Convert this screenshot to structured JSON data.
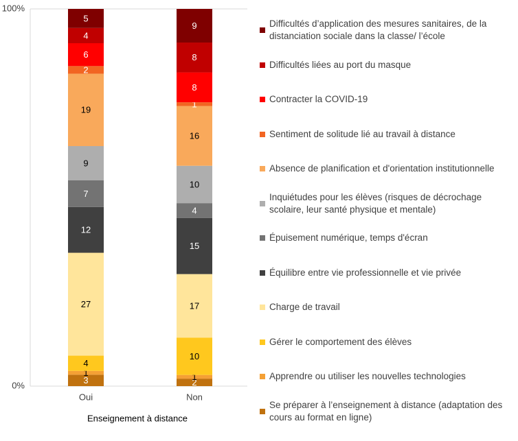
{
  "chart_data": {
    "type": "bar",
    "stacking": "percent",
    "x_label": "Enseignement à distance",
    "categories": [
      "Oui",
      "Non"
    ],
    "ylim": [
      0,
      100
    ],
    "yticks": [
      {
        "value": 0,
        "label": "0%"
      },
      {
        "value": 100,
        "label": "100%"
      }
    ],
    "series": [
      {
        "name": "Se préparer à l’enseignement à distance (adaptation des cours au format en ligne)",
        "color": "#c0720f",
        "values": [
          3,
          2
        ]
      },
      {
        "name": "Apprendre ou utiliser les nouvelles technologies",
        "color": "#f4a035",
        "values": [
          1,
          1
        ]
      },
      {
        "name": "Gérer le comportement des élèves",
        "color": "#ffc81e",
        "values": [
          4,
          10
        ]
      },
      {
        "name": "Charge de travail",
        "color": "#ffe59b",
        "values": [
          27,
          17
        ]
      },
      {
        "name": "Équilibre entre vie professionnelle et vie privée",
        "color": "#404040",
        "values": [
          12,
          15
        ]
      },
      {
        "name": "Épuisement numérique, temps d'écran",
        "color": "#737373",
        "values": [
          7,
          4
        ]
      },
      {
        "name": "Inquiétudes pour les élèves (risques de décrochage scolaire, leur santé physique et mentale)",
        "color": "#aeaeae",
        "values": [
          9,
          10
        ]
      },
      {
        "name": "Absence de planification et d'orientation institutionnelle",
        "color": "#f9a95b",
        "values": [
          19,
          16
        ]
      },
      {
        "name": "Sentiment de solitude lié au travail à distance",
        "color": "#f26522",
        "values": [
          2,
          1
        ]
      },
      {
        "name": "Contracter la COVID-19",
        "color": "#ff0000",
        "values": [
          6,
          8
        ]
      },
      {
        "name": "Difficultés liées au port du masque",
        "color": "#c00000",
        "values": [
          4,
          8
        ]
      },
      {
        "name": "Difficultés d’application des mesures sanitaires, de la distanciation sociale dans la classe/ l’école",
        "color": "#7f0000",
        "values": [
          5,
          9
        ]
      }
    ]
  }
}
